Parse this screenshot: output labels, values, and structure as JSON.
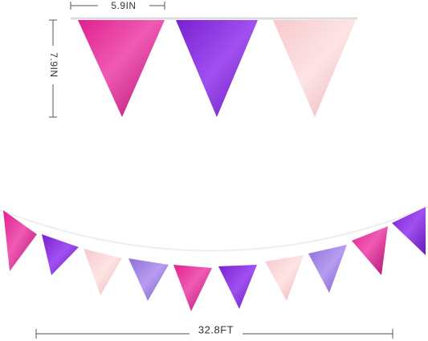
{
  "width_label": "5.9IN",
  "height_label": "7.9IN",
  "length_label": "32.8FT"
}
